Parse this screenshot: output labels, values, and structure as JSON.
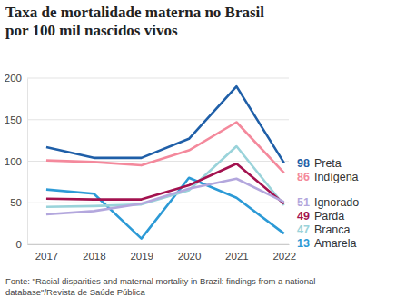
{
  "chart_data": {
    "type": "line",
    "title": "Taxa de mortalidade materna no Brasil por 100 mil nascidos vivos",
    "source": "Fonte: \"Racial disparities and maternal mortality in Brazil: findings from a national database\"/Revista de Saúde Pública",
    "x": [
      2017,
      2018,
      2019,
      2020,
      2021,
      2022
    ],
    "xlim": [
      2016.6,
      2022.1
    ],
    "xticks": [
      2017,
      2018,
      2019,
      2020,
      2021,
      2022
    ],
    "ylim": [
      0,
      200
    ],
    "yticks": [
      0,
      50,
      100,
      150,
      200
    ],
    "grid": true,
    "legend": "right",
    "series": [
      {
        "name": "Preta",
        "color": "#1f5fa8",
        "values": [
          117,
          104,
          104,
          127,
          190,
          98
        ]
      },
      {
        "name": "Indígena",
        "color": "#f4899c",
        "values": [
          101,
          99,
          95,
          113,
          147,
          86
        ]
      },
      {
        "name": "Ignorado",
        "color": "#b3a7dd",
        "values": [
          36,
          40,
          49,
          67,
          79,
          51
        ]
      },
      {
        "name": "Parda",
        "color": "#a3124f",
        "values": [
          55,
          54,
          54,
          71,
          97,
          49
        ]
      },
      {
        "name": "Branca",
        "color": "#9ad3da",
        "values": [
          45,
          46,
          48,
          65,
          118,
          47
        ]
      },
      {
        "name": "Amarela",
        "color": "#2c9ad6",
        "values": [
          66,
          61,
          7,
          80,
          56,
          13
        ]
      }
    ]
  }
}
